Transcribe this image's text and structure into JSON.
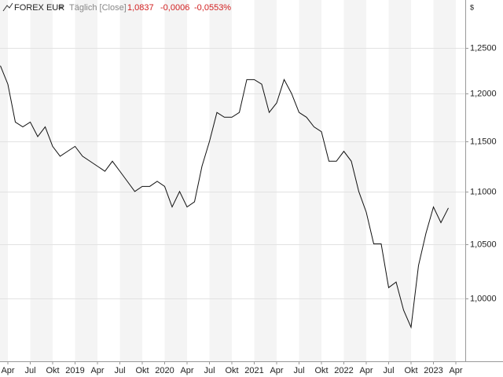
{
  "chart_data": {
    "type": "line",
    "header": {
      "instrument": "FOREX EUR",
      "marker": "=",
      "interval": "Täglich [Close]",
      "last": "1,0837",
      "change": "-0,0006",
      "change_pct": "-0,0553%"
    },
    "y_label": "$",
    "log_scale": true,
    "grid": true,
    "xlim": [
      "2018-03",
      "2023-05"
    ],
    "ylim": [
      0.946,
      1.304
    ],
    "yticks": [
      {
        "value": 1.0,
        "label": "1,0000"
      },
      {
        "value": 1.05,
        "label": "1,0500"
      },
      {
        "value": 1.1,
        "label": "1,1000"
      },
      {
        "value": 1.15,
        "label": "1,1500"
      },
      {
        "value": 1.2,
        "label": "1,2000"
      },
      {
        "value": 1.25,
        "label": "1,2500"
      }
    ],
    "xticks": [
      {
        "value": "2018-04",
        "label": "Apr"
      },
      {
        "value": "2018-07",
        "label": "Jul"
      },
      {
        "value": "2018-10",
        "label": "Okt"
      },
      {
        "value": "2019-01",
        "label": "2019"
      },
      {
        "value": "2019-04",
        "label": "Apr"
      },
      {
        "value": "2019-07",
        "label": "Jul"
      },
      {
        "value": "2019-10",
        "label": "Okt"
      },
      {
        "value": "2020-01",
        "label": "2020"
      },
      {
        "value": "2020-04",
        "label": "Apr"
      },
      {
        "value": "2020-07",
        "label": "Jul"
      },
      {
        "value": "2020-10",
        "label": "Okt"
      },
      {
        "value": "2021-01",
        "label": "2021"
      },
      {
        "value": "2021-04",
        "label": "Apr"
      },
      {
        "value": "2021-07",
        "label": "Jul"
      },
      {
        "value": "2021-10",
        "label": "Okt"
      },
      {
        "value": "2022-01",
        "label": "2022"
      },
      {
        "value": "2022-04",
        "label": "Apr"
      },
      {
        "value": "2022-07",
        "label": "Jul"
      },
      {
        "value": "2022-10",
        "label": "Okt"
      },
      {
        "value": "2023-01",
        "label": "2023"
      },
      {
        "value": "2023-04",
        "label": "Apr"
      }
    ],
    "x": [
      "2018-03",
      "2018-04",
      "2018-05",
      "2018-06",
      "2018-07",
      "2018-08",
      "2018-09",
      "2018-10",
      "2018-11",
      "2018-12",
      "2019-01",
      "2019-02",
      "2019-03",
      "2019-04",
      "2019-05",
      "2019-06",
      "2019-07",
      "2019-08",
      "2019-09",
      "2019-10",
      "2019-11",
      "2019-12",
      "2020-01",
      "2020-02",
      "2020-03",
      "2020-04",
      "2020-05",
      "2020-06",
      "2020-07",
      "2020-08",
      "2020-09",
      "2020-10",
      "2020-11",
      "2020-12",
      "2021-01",
      "2021-02",
      "2021-03",
      "2021-04",
      "2021-05",
      "2021-06",
      "2021-07",
      "2021-08",
      "2021-09",
      "2021-10",
      "2021-11",
      "2021-12",
      "2022-01",
      "2022-02",
      "2022-03",
      "2022-04",
      "2022-05",
      "2022-06",
      "2022-07",
      "2022-08",
      "2022-09",
      "2022-10",
      "2022-11",
      "2022-12",
      "2023-01",
      "2023-02",
      "2023-03"
    ],
    "series": [
      {
        "name": "FOREX EUR",
        "color": "#111111",
        "values": [
          1.23,
          1.21,
          1.17,
          1.165,
          1.17,
          1.155,
          1.165,
          1.145,
          1.135,
          1.14,
          1.145,
          1.135,
          1.13,
          1.125,
          1.12,
          1.13,
          1.12,
          1.11,
          1.1,
          1.105,
          1.105,
          1.11,
          1.105,
          1.085,
          1.1,
          1.085,
          1.09,
          1.125,
          1.15,
          1.18,
          1.175,
          1.175,
          1.18,
          1.215,
          1.215,
          1.21,
          1.18,
          1.19,
          1.215,
          1.2,
          1.18,
          1.175,
          1.165,
          1.16,
          1.13,
          1.13,
          1.14,
          1.13,
          1.1,
          1.08,
          1.05,
          1.05,
          1.01,
          1.015,
          0.99,
          0.975,
          1.03,
          1.06,
          1.085,
          1.07,
          1.084
        ]
      }
    ]
  }
}
